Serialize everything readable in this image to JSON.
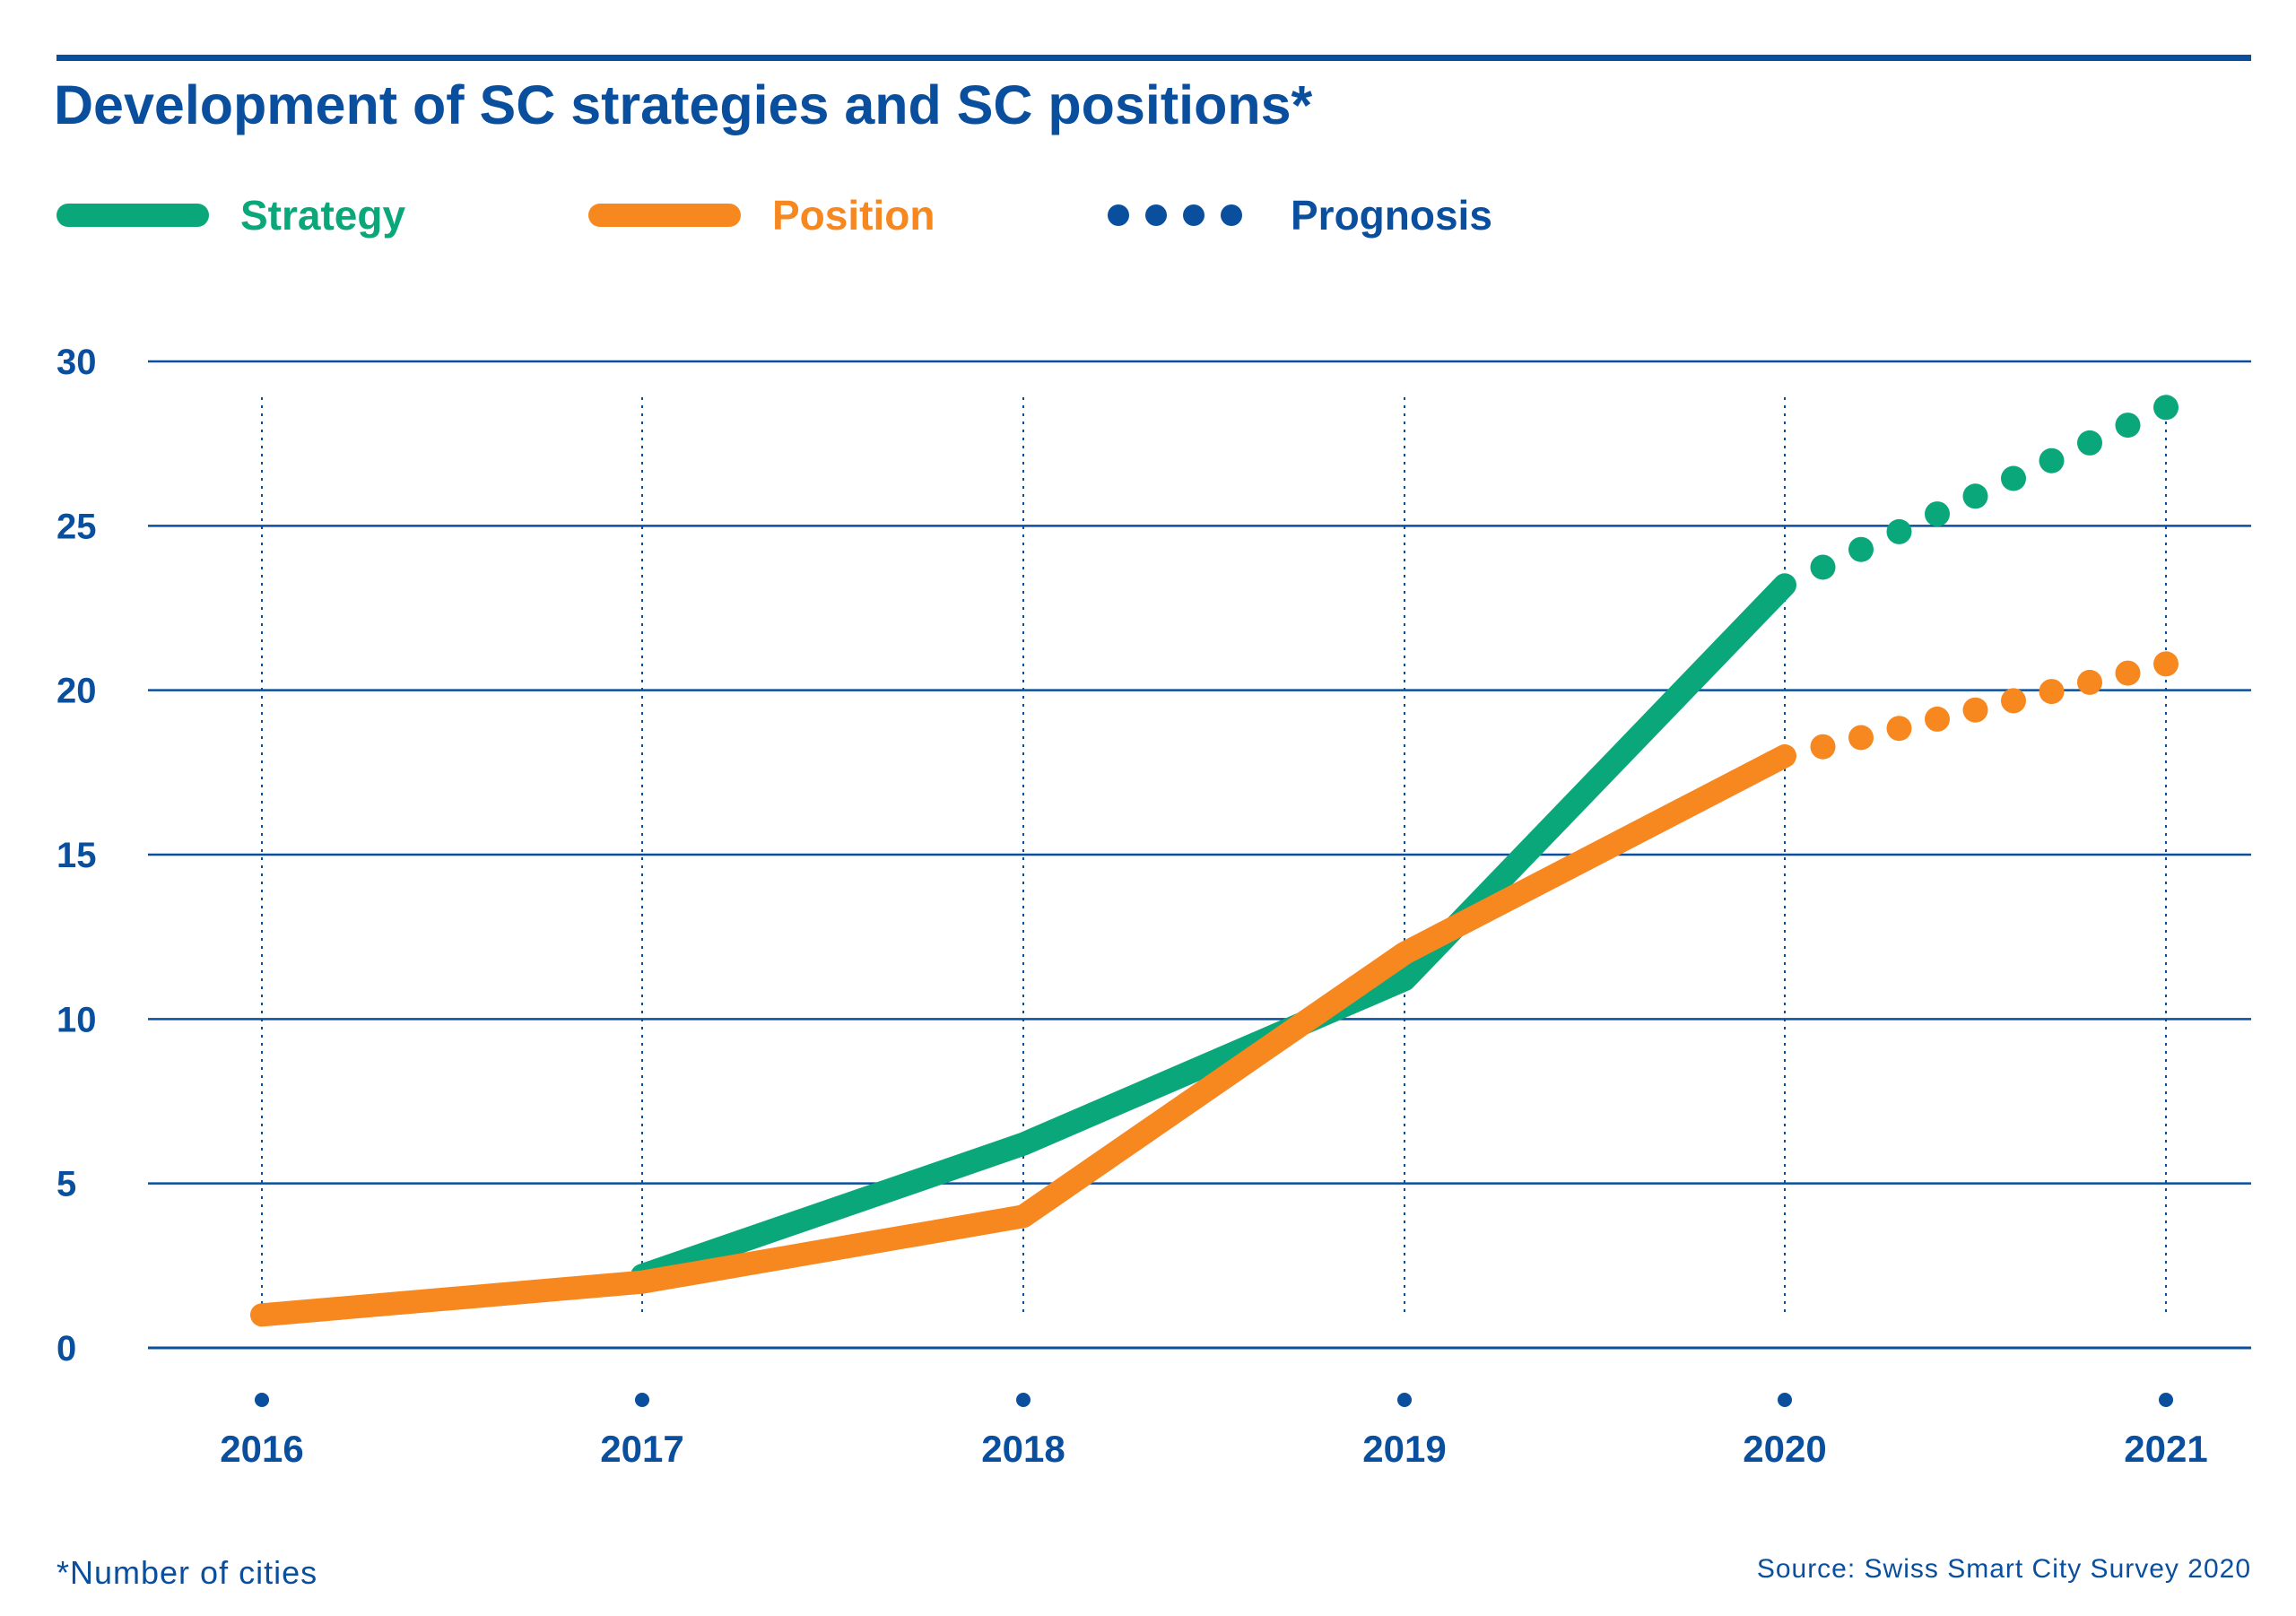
{
  "title": "Development of SC strategies and SC positions*",
  "legend": [
    {
      "label": "Strategy",
      "color": "#0aa77a",
      "style": "solid"
    },
    {
      "label": "Position",
      "color": "#f7871f",
      "style": "solid"
    },
    {
      "label": "Prognosis",
      "color": "#0a4f9e",
      "style": "dots"
    }
  ],
  "footnote": "*Number of cities",
  "source": "Source: Swiss Smart City Survey 2020",
  "colors": {
    "axis": "#0a4f9e",
    "strategy": "#0aa77a",
    "position": "#f7871f"
  },
  "chart_data": {
    "type": "line",
    "title": "Development of SC strategies and SC positions*",
    "xlabel": "",
    "ylabel": "",
    "x": [
      "2016",
      "2017",
      "2018",
      "2019",
      "2020",
      "2021"
    ],
    "ylim": [
      0,
      30
    ],
    "yticks": [
      0,
      5,
      10,
      15,
      20,
      25,
      30
    ],
    "grid": "horizontal solid, vertical dotted",
    "legend_position": "top-left",
    "series": [
      {
        "name": "Strategy",
        "color": "#0aa77a",
        "values": [
          null,
          2.2,
          6.2,
          11.2,
          23.2,
          null
        ]
      },
      {
        "name": "Position",
        "color": "#f7871f",
        "values": [
          1,
          2,
          4,
          12,
          18,
          null
        ]
      },
      {
        "name": "Prognosis",
        "style": "dotted",
        "color": "#0aa77a",
        "values": [
          null,
          null,
          null,
          null,
          23.2,
          28.6
        ],
        "of": "Strategy"
      },
      {
        "name": "Prognosis",
        "style": "dotted",
        "color": "#f7871f",
        "values": [
          null,
          null,
          null,
          null,
          18,
          20.8
        ],
        "of": "Position"
      }
    ]
  }
}
